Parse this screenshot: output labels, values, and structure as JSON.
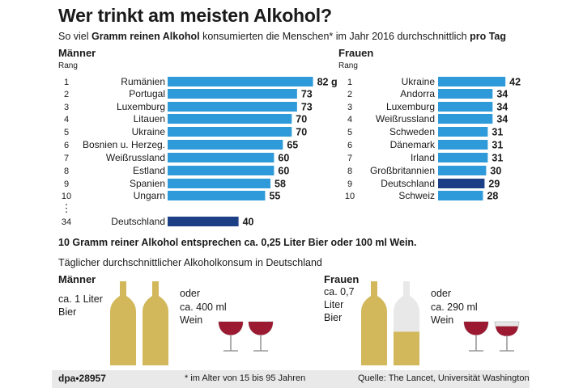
{
  "title": "Wer trinkt am meisten Alkohol?",
  "subtitle_parts": [
    "So viel ",
    "Gramm reinen Alkohol",
    " konsumierten die Menschen* im Jahr 2016 durchschnittlich ",
    "pro Tag"
  ],
  "colors": {
    "bar": "#2f9ad9",
    "highlight": "#1c3f86",
    "beer": "#d2b85a",
    "bottle_empty": "#e8e8e8",
    "wine": "#9b1a32",
    "footer_bg": "#e9e9e9"
  },
  "chart_data": [
    {
      "type": "bar",
      "panel": "Männer",
      "rank_header": "Rang",
      "ranks": [
        "1",
        "2",
        "3",
        "4",
        "5",
        "6",
        "7",
        "8",
        "9",
        "10",
        "34"
      ],
      "categories": [
        "Rumänien",
        "Portugal",
        "Luxemburg",
        "Litauen",
        "Ukraine",
        "Bosnien u. Herzeg.",
        "Weißrussland",
        "Estland",
        "Spanien",
        "Ungarn",
        "Deutschland"
      ],
      "values": [
        82,
        73,
        73,
        70,
        70,
        65,
        60,
        60,
        58,
        55,
        40
      ],
      "value_labels": [
        "82 g",
        "73",
        "73",
        "70",
        "70",
        "65",
        "60",
        "60",
        "58",
        "55",
        "40"
      ],
      "highlight": "Deutschland",
      "unit": "g",
      "gap_marker": "⋮"
    },
    {
      "type": "bar",
      "panel": "Frauen",
      "rank_header": "Rang",
      "ranks": [
        "1",
        "2",
        "3",
        "4",
        "5",
        "6",
        "7",
        "8",
        "9",
        "10"
      ],
      "categories": [
        "Ukraine",
        "Andorra",
        "Luxemburg",
        "Weißrussland",
        "Schweden",
        "Dänemark",
        "Irland",
        "Großbritannien",
        "Deutschland",
        "Schweiz"
      ],
      "values": [
        42,
        34,
        34,
        34,
        31,
        31,
        31,
        30,
        29,
        28
      ],
      "value_labels": [
        "42",
        "34",
        "34",
        "34",
        "31",
        "31",
        "31",
        "30",
        "29",
        "28"
      ],
      "highlight": "Deutschland",
      "unit": "g"
    }
  ],
  "fact": "10 Gramm reiner Alkohol entsprechen ca. 0,25 Liter Bier oder 100 ml Wein.",
  "consumption_title": "Täglicher durchschnittlicher Alkoholkonsum in Deutschland",
  "men": {
    "label": "Männer",
    "beer": "ca. 1 Liter\nBier",
    "or": "oder",
    "wine": "ca. 400 ml\nWein",
    "beer_fill": [
      1.0,
      1.0
    ],
    "wine_fill": [
      1.0,
      1.0
    ]
  },
  "women": {
    "label": "Frauen",
    "beer": "ca. 0,7\nLiter\nBier",
    "or": "oder",
    "wine": "ca. 290 ml\nWein",
    "beer_fill": [
      1.0,
      0.4
    ],
    "wine_fill": [
      1.0,
      0.3
    ]
  },
  "footer": {
    "brand": "dpa•28957",
    "note": "* im Alter von 15 bis 95 Jahren",
    "source": "Quelle: The Lancet, Universität Washington"
  }
}
